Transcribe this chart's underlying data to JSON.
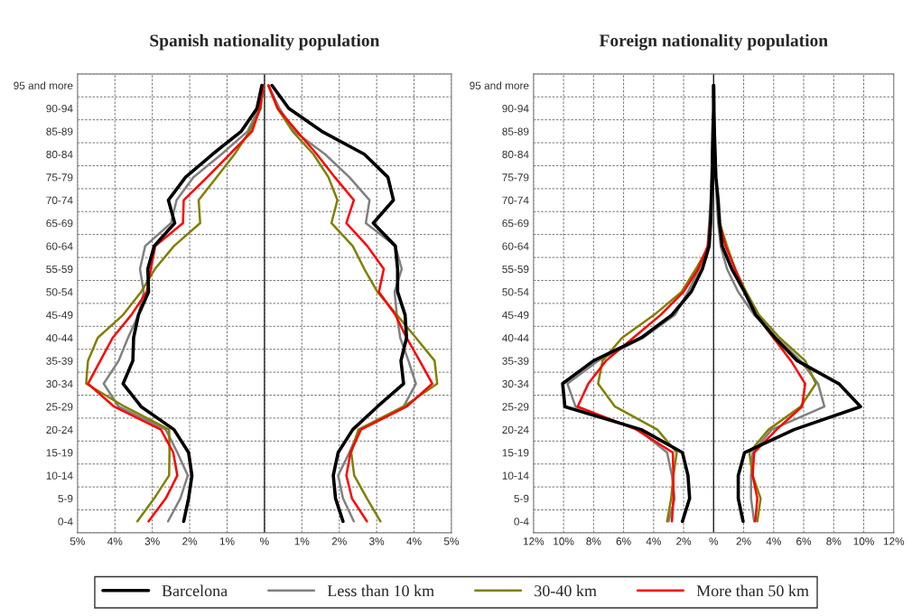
{
  "chart_data": [
    {
      "type": "line",
      "orientation": "horizontal",
      "title": "Spanish nationality population",
      "categories": [
        "95 and more",
        "90-94",
        "85-89",
        "80-84",
        "75-79",
        "70-74",
        "65-69",
        "60-64",
        "55-59",
        "50-54",
        "45-49",
        "40-44",
        "35-39",
        "30-34",
        "25-29",
        "20-24",
        "15-19",
        "10-14",
        "5-9",
        "0-4"
      ],
      "xlim": [
        -5,
        5
      ],
      "xticks": [
        {
          "value": -5,
          "label": "5%"
        },
        {
          "value": -4,
          "label": "4%"
        },
        {
          "value": -3,
          "label": "3%"
        },
        {
          "value": -2,
          "label": "2%"
        },
        {
          "value": -1,
          "label": "1%"
        },
        {
          "value": 0,
          "label": "%"
        },
        {
          "value": 1,
          "label": "1%"
        },
        {
          "value": 2,
          "label": "2%"
        },
        {
          "value": 3,
          "label": "3%"
        },
        {
          "value": 4,
          "label": "4%"
        },
        {
          "value": 5,
          "label": "5%"
        }
      ],
      "grid": true,
      "legend": "bottom",
      "line_style": "solid",
      "marker": "none",
      "series": [
        {
          "name": "Barcelona",
          "color": "#000000",
          "values": [
            -0.07,
            -0.2,
            -0.62,
            -1.39,
            -2.11,
            -2.57,
            -2.4,
            -2.95,
            -3.12,
            -3.1,
            -3.37,
            -3.5,
            -3.52,
            -3.78,
            -3.3,
            -2.42,
            -2.03,
            -1.94,
            -2.03,
            -2.16
          ]
        },
        {
          "name": "Less than 10 km",
          "color": "#808080",
          "values": [
            -0.05,
            -0.15,
            -0.45,
            -1.15,
            -1.9,
            -2.35,
            -2.5,
            -3.19,
            -3.33,
            -3.23,
            -3.37,
            -3.65,
            -3.9,
            -4.3,
            -3.9,
            -2.64,
            -2.33,
            -2.05,
            -2.25,
            -2.58
          ]
        },
        {
          "name": "30-40 km",
          "color": "#808000",
          "values": [
            -0.03,
            -0.1,
            -0.4,
            -0.8,
            -1.28,
            -1.76,
            -1.72,
            -2.42,
            -2.93,
            -3.3,
            -3.78,
            -4.46,
            -4.72,
            -4.77,
            -3.74,
            -2.55,
            -2.54,
            -2.55,
            -2.95,
            -3.4
          ]
        },
        {
          "name": "More than 50 km",
          "color": "#ff0000",
          "values": [
            -0.03,
            -0.12,
            -0.33,
            -0.93,
            -1.53,
            -2.16,
            -2.18,
            -2.92,
            -3.04,
            -3.15,
            -3.56,
            -4.06,
            -4.39,
            -4.72,
            -4.02,
            -2.77,
            -2.44,
            -2.33,
            -2.64,
            -3.1
          ]
        },
        {
          "color": "#000000",
          "values": [
            0.2,
            0.65,
            1.53,
            2.67,
            3.3,
            3.45,
            2.91,
            3.5,
            3.56,
            3.56,
            3.76,
            3.8,
            3.65,
            3.72,
            3.02,
            2.36,
            1.97,
            1.84,
            1.9,
            2.1
          ]
        },
        {
          "color": "#808080",
          "values": [
            0.1,
            0.4,
            0.79,
            1.62,
            2.27,
            2.81,
            2.71,
            3.5,
            3.67,
            3.48,
            3.54,
            3.63,
            3.85,
            4.05,
            3.72,
            2.54,
            2.27,
            1.97,
            2.1,
            2.39
          ]
        },
        {
          "color": "#808000",
          "values": [
            0.1,
            0.35,
            0.75,
            1.31,
            1.71,
            1.95,
            1.79,
            2.36,
            2.67,
            3.02,
            3.54,
            4.05,
            4.55,
            4.62,
            3.72,
            2.51,
            2.32,
            2.4,
            2.74,
            3.1
          ]
        },
        {
          "color": "#ff0000",
          "values": [
            0.11,
            0.35,
            0.87,
            1.4,
            1.88,
            2.39,
            2.19,
            2.75,
            3.19,
            3.06,
            3.5,
            3.8,
            4.15,
            4.49,
            3.8,
            2.58,
            2.3,
            2.19,
            2.34,
            2.74
          ]
        }
      ]
    },
    {
      "type": "line",
      "orientation": "horizontal",
      "title": "Foreign nationality population",
      "categories": [
        "95 and more",
        "90-94",
        "85-89",
        "80-84",
        "75-79",
        "70-74",
        "65-69",
        "60-64",
        "55-59",
        "50-54",
        "45-49",
        "40-44",
        "35-39",
        "30-34",
        "25-29",
        "20-24",
        "15-19",
        "10-14",
        "5-9",
        "0-4"
      ],
      "xlim": [
        -12,
        12
      ],
      "xticks": [
        {
          "value": -12,
          "label": "12%"
        },
        {
          "value": -10,
          "label": "10%"
        },
        {
          "value": -8,
          "label": "8%"
        },
        {
          "value": -6,
          "label": "6%"
        },
        {
          "value": -4,
          "label": "4%"
        },
        {
          "value": -2,
          "label": "2%"
        },
        {
          "value": 0,
          "label": "%"
        },
        {
          "value": 2,
          "label": "2%"
        },
        {
          "value": 4,
          "label": "4%"
        },
        {
          "value": 6,
          "label": "6%"
        },
        {
          "value": 8,
          "label": "8%"
        },
        {
          "value": 10,
          "label": "10%"
        },
        {
          "value": 12,
          "label": "12%"
        }
      ],
      "grid": true,
      "line_style": "solid",
      "marker": "none",
      "series": [
        {
          "color": "#000000",
          "values": [
            0,
            0,
            -0.05,
            -0.08,
            -0.1,
            -0.15,
            -0.2,
            -0.3,
            -0.75,
            -1.5,
            -2.78,
            -4.82,
            -8.0,
            -10.06,
            -9.91,
            -4.82,
            -2.08,
            -1.71,
            -1.6,
            -2.08
          ]
        },
        {
          "color": "#808080",
          "values": [
            0,
            0,
            -0.05,
            -0.1,
            -0.15,
            -0.2,
            -0.3,
            -0.4,
            -0.96,
            -1.71,
            -2.57,
            -4.7,
            -7.7,
            -9.74,
            -9.2,
            -5.03,
            -3.1,
            -2.78,
            -2.6,
            -3.0
          ]
        },
        {
          "color": "#808000",
          "values": [
            null,
            null,
            null,
            null,
            null,
            null,
            -0.2,
            -0.32,
            -1.18,
            -2.14,
            -3.96,
            -6.1,
            -7.4,
            -7.7,
            -6.57,
            -3.75,
            -2.46,
            -2.68,
            -2.83,
            -3.1
          ]
        },
        {
          "color": "#ff0000",
          "values": [
            null,
            null,
            null,
            null,
            null,
            null,
            -0.25,
            -0.39,
            -1.03,
            -2.0,
            -3.53,
            -5.35,
            -7.17,
            -8.35,
            -9.06,
            -5.14,
            -2.72,
            -2.68,
            -2.68,
            -2.78
          ]
        },
        {
          "color": "#000000",
          "values": [
            0,
            0.02,
            0.05,
            0.1,
            0.15,
            0.3,
            0.4,
            0.57,
            1.21,
            2.06,
            2.81,
            4.09,
            5.57,
            8.34,
            9.79,
            5.36,
            2.06,
            1.64,
            1.64,
            1.96
          ]
        },
        {
          "color": "#808080",
          "values": [
            0,
            0.02,
            0.05,
            0.1,
            0.15,
            0.2,
            0.3,
            0.47,
            0.89,
            1.64,
            2.7,
            4.19,
            5.79,
            6.96,
            7.38,
            3.87,
            2.6,
            2.49,
            2.49,
            2.7
          ]
        },
        {
          "color": "#808000",
          "values": [
            null,
            null,
            null,
            null,
            null,
            null,
            0.4,
            0.89,
            1.43,
            2.17,
            3.02,
            4.4,
            6.1,
            6.81,
            5.79,
            3.66,
            2.38,
            2.6,
            3.13,
            2.91
          ]
        },
        {
          "color": "#ff0000",
          "values": [
            null,
            null,
            null,
            null,
            null,
            null,
            0.4,
            0.79,
            1.43,
            2.06,
            2.81,
            3.98,
            5.15,
            6.1,
            5.89,
            4.19,
            2.7,
            2.6,
            2.91,
            2.77
          ]
        }
      ]
    }
  ]
}
